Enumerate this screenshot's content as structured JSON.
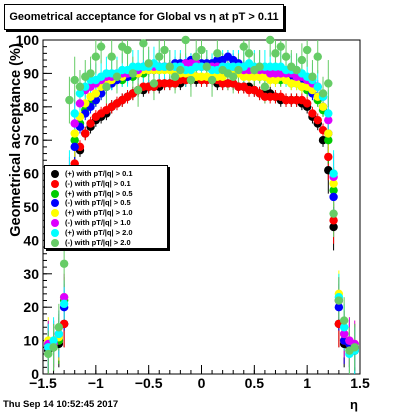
{
  "title": "Geometrical acceptance for Global vs   η at pT > 0.11",
  "footer": "Thu Sep 14 10:52:45 2017",
  "chart_data": {
    "type": "scatter",
    "title": "Geometrical acceptance for Global vs   η at pT > 0.11",
    "xlabel": "η",
    "ylabel": "Geometrical acceptance (%)",
    "xlim": [
      -1.5,
      1.5
    ],
    "ylim": [
      0,
      100
    ],
    "x_ticks": [
      "−1.5",
      "−1",
      "−0.5",
      "0",
      "0.5",
      "1",
      "1.5"
    ],
    "y_ticks": [
      "0",
      "10",
      "20",
      "30",
      "40",
      "50",
      "60",
      "70",
      "80",
      "90",
      "100"
    ],
    "grid": false,
    "legend_position": "left",
    "x": [
      -1.45,
      -1.4,
      -1.35,
      -1.3,
      -1.25,
      -1.2,
      -1.15,
      -1.1,
      -1.05,
      -1.0,
      -0.95,
      -0.9,
      -0.85,
      -0.8,
      -0.75,
      -0.7,
      -0.65,
      -0.6,
      -0.55,
      -0.5,
      -0.45,
      -0.4,
      -0.35,
      -0.3,
      -0.25,
      -0.2,
      -0.15,
      -0.1,
      -0.05,
      0.0,
      0.05,
      0.1,
      0.15,
      0.2,
      0.25,
      0.3,
      0.35,
      0.4,
      0.45,
      0.5,
      0.55,
      0.6,
      0.65,
      0.7,
      0.75,
      0.8,
      0.85,
      0.9,
      0.95,
      1.0,
      1.05,
      1.1,
      1.15,
      1.2,
      1.25,
      1.3,
      1.35,
      1.4,
      1.45
    ],
    "series": [
      {
        "name": "(+) with pT/|q| > 0.1",
        "color": "#000000",
        "values": [
          7,
          8,
          9,
          15,
          45,
          62,
          67,
          72,
          74,
          76,
          77,
          78,
          80,
          81,
          82,
          83,
          84,
          85,
          85,
          86,
          86,
          86,
          87,
          87,
          87,
          87,
          88,
          88,
          88,
          88,
          88,
          88,
          87,
          87,
          87,
          87,
          86,
          86,
          86,
          85,
          84,
          84,
          84,
          83,
          82,
          82,
          82,
          82,
          81,
          80,
          77,
          75,
          70,
          61,
          44,
          15,
          9,
          8,
          7
        ]
      },
      {
        "name": "(-) with pT/|q| > 0.1",
        "color": "#ff0000",
        "values": [
          8,
          9,
          10,
          15,
          46,
          63,
          68,
          72,
          75,
          77,
          78,
          79,
          80,
          81,
          82,
          83,
          84,
          85,
          86,
          86,
          86,
          87,
          87,
          87,
          87,
          88,
          88,
          88,
          89,
          88,
          88,
          88,
          88,
          87,
          87,
          87,
          86,
          86,
          85,
          85,
          84,
          83,
          83,
          83,
          83,
          82,
          82,
          82,
          82,
          81,
          78,
          76,
          73,
          65,
          46,
          15,
          10,
          9,
          8
        ]
      },
      {
        "name": "(+) with pT/|q| > 0.5",
        "color": "#00cc00",
        "values": [
          9,
          8,
          10,
          22,
          55,
          70,
          75,
          79,
          81,
          82,
          84,
          86,
          87,
          88,
          88,
          89,
          89,
          90,
          90,
          91,
          91,
          91,
          92,
          92,
          92,
          92,
          93,
          93,
          92,
          92,
          92,
          92,
          92,
          92,
          91,
          91,
          91,
          90,
          90,
          90,
          89,
          89,
          89,
          88,
          88,
          88,
          87,
          87,
          86,
          85,
          84,
          82,
          79,
          70,
          55,
          22,
          12,
          9,
          8
        ]
      },
      {
        "name": "(-) with pT/|q| > 0.5",
        "color": "#0000ff",
        "values": [
          8,
          9,
          11,
          20,
          52,
          68,
          74,
          78,
          80,
          82,
          84,
          86,
          87,
          88,
          89,
          89,
          90,
          90,
          91,
          91,
          91,
          92,
          92,
          92,
          93,
          93,
          93,
          94,
          93,
          93,
          93,
          93,
          94,
          94,
          95,
          94,
          93,
          92,
          92,
          91,
          90,
          90,
          90,
          89,
          89,
          89,
          88,
          88,
          87,
          86,
          84,
          83,
          80,
          72,
          53,
          20,
          10,
          9,
          8
        ]
      },
      {
        "name": "(+) with pT/|q| > 1.0",
        "color": "#ffff00",
        "values": [
          10,
          9,
          11,
          23,
          56,
          72,
          77,
          81,
          83,
          84,
          86,
          87,
          88,
          89,
          89,
          90,
          90,
          90,
          91,
          91,
          91,
          91,
          91,
          91,
          90,
          90,
          90,
          90,
          89,
          89,
          89,
          89,
          89,
          89,
          90,
          90,
          90,
          89,
          89,
          89,
          89,
          89,
          88,
          88,
          89,
          88,
          87,
          87,
          86,
          86,
          85,
          83,
          80,
          72,
          57,
          24,
          12,
          10,
          9
        ]
      },
      {
        "name": "(-) with pT/|q| > 1.0",
        "color": "#dd00ff",
        "values": [
          9,
          9,
          12,
          23,
          58,
          75,
          81,
          85,
          86,
          87,
          88,
          89,
          89,
          90,
          90,
          90,
          91,
          91,
          92,
          92,
          92,
          92,
          92,
          92,
          92,
          92,
          93,
          93,
          93,
          92,
          92,
          92,
          92,
          92,
          92,
          92,
          92,
          91,
          91,
          91,
          91,
          91,
          90,
          90,
          90,
          90,
          90,
          89,
          89,
          88,
          87,
          86,
          83,
          76,
          59,
          22,
          12,
          10,
          9
        ]
      },
      {
        "name": "(+) with pT/|q| > 2.0",
        "color": "#00ffff",
        "values": [
          8,
          10,
          12,
          21,
          60,
          78,
          84,
          86,
          88,
          88,
          89,
          90,
          90,
          90,
          91,
          91,
          92,
          92,
          92,
          92,
          93,
          92,
          92,
          92,
          92,
          92,
          91,
          91,
          92,
          92,
          92,
          91,
          91,
          92,
          92,
          92,
          92,
          92,
          93,
          92,
          92,
          92,
          92,
          92,
          92,
          91,
          91,
          91,
          90,
          89,
          88,
          86,
          83,
          78,
          60,
          23,
          14,
          6,
          7
        ]
      },
      {
        "name": "(-) with pT/|q| > 2.0",
        "color": "#66cc66",
        "values": [
          6,
          8,
          14,
          33,
          82,
          88,
          86,
          89,
          90,
          95,
          98,
          86,
          95,
          89,
          98,
          97,
          90,
          85,
          99,
          93,
          87,
          95,
          97,
          92,
          89,
          91,
          100,
          88,
          95,
          97,
          92,
          88,
          96,
          91,
          90,
          89,
          91,
          98,
          96,
          91,
          92,
          86,
          100,
          96,
          98,
          95,
          92,
          91,
          94,
          97,
          89,
          95,
          84,
          87,
          48,
          22,
          16,
          7,
          8
        ]
      }
    ]
  }
}
